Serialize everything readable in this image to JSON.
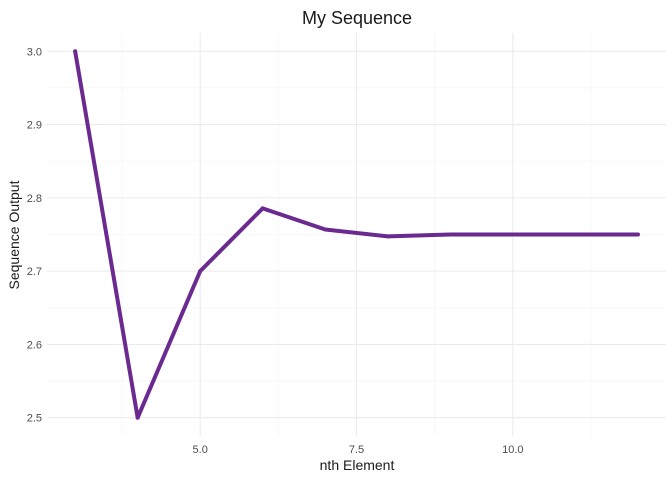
{
  "chart_data": {
    "type": "line",
    "title": "My Sequence",
    "xlabel": "nth Element",
    "ylabel": "Sequence Output",
    "xlim": [
      2.55,
      12.45
    ],
    "ylim": [
      2.475,
      3.025
    ],
    "x_major_ticks": [
      5.0,
      7.5,
      10.0
    ],
    "x_minor_ticks": [
      3.75,
      6.25,
      8.75,
      11.25
    ],
    "y_major_ticks": [
      2.5,
      2.6,
      2.7,
      2.8,
      2.9,
      3.0
    ],
    "y_minor_ticks": [
      2.55,
      2.65,
      2.75,
      2.85,
      2.95
    ],
    "x_tick_labels": [
      "5.0",
      "7.5",
      "10.0"
    ],
    "y_tick_labels": [
      "2.5",
      "2.6",
      "2.7",
      "2.8",
      "2.9",
      "3.0"
    ],
    "grid": true,
    "legend": false,
    "series": [
      {
        "color": "#6a2a8f",
        "x": [
          3,
          4,
          5,
          6,
          7,
          8,
          9,
          10,
          11,
          12
        ],
        "y": [
          3.0,
          2.5,
          2.7,
          2.7857,
          2.7568,
          2.7475,
          2.75,
          2.75,
          2.75,
          2.75
        ]
      }
    ]
  }
}
